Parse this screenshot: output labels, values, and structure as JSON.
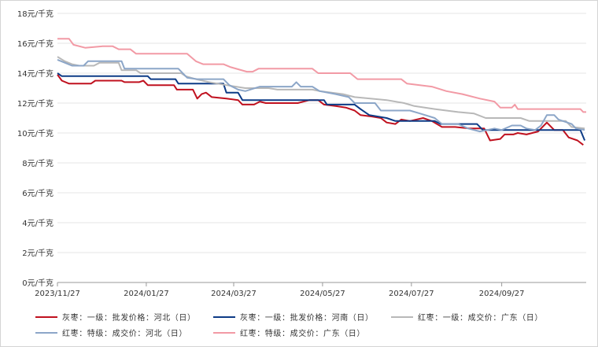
{
  "chart_data": {
    "type": "line",
    "title": "",
    "xlabel": "",
    "ylabel": "",
    "y_tick_labels": [
      "0元/千克",
      "2元/千克",
      "4元/千克",
      "6元/千克",
      "8元/千克",
      "10元/千克",
      "12元/千克",
      "14元/千克",
      "16元/千克",
      "18元/千克"
    ],
    "y_ticks": [
      0,
      2,
      4,
      6,
      8,
      10,
      12,
      14,
      16,
      18
    ],
    "ylim": [
      0,
      18
    ],
    "x_tick_labels": [
      "2023/11/27",
      "2024/01/27",
      "2024/03/27",
      "2024/05/27",
      "2024/07/27",
      "2024/09/27"
    ],
    "x_ticks": [
      "2023-11-27",
      "2024-01-27",
      "2024-03-27",
      "2024-05-27",
      "2024-07-27",
      "2024-09-27"
    ],
    "xlim": [
      "2023-11-27",
      "2024-11-24"
    ],
    "grid": "horizontal",
    "legend_position": "bottom",
    "series": [
      {
        "name": "灰枣：一级：批发价格：河北（日）",
        "color": "#c0111f",
        "points": [
          [
            "2023-11-27",
            13.9
          ],
          [
            "2023-11-30",
            13.5
          ],
          [
            "2023-12-05",
            13.3
          ],
          [
            "2023-12-20",
            13.3
          ],
          [
            "2023-12-23",
            13.5
          ],
          [
            "2024-01-10",
            13.5
          ],
          [
            "2024-01-12",
            13.4
          ],
          [
            "2024-01-22",
            13.4
          ],
          [
            "2024-01-25",
            13.5
          ],
          [
            "2024-01-28",
            13.2
          ],
          [
            "2024-02-15",
            13.2
          ],
          [
            "2024-02-17",
            12.9
          ],
          [
            "2024-02-28",
            12.9
          ],
          [
            "2024-03-02",
            12.3
          ],
          [
            "2024-03-05",
            12.6
          ],
          [
            "2024-03-08",
            12.7
          ],
          [
            "2024-03-12",
            12.4
          ],
          [
            "2024-03-22",
            12.3
          ],
          [
            "2024-03-30",
            12.2
          ],
          [
            "2024-04-02",
            11.9
          ],
          [
            "2024-04-10",
            11.9
          ],
          [
            "2024-04-14",
            12.1
          ],
          [
            "2024-04-18",
            12.0
          ],
          [
            "2024-05-10",
            12.0
          ],
          [
            "2024-05-18",
            12.2
          ],
          [
            "2024-05-24",
            12.2
          ],
          [
            "2024-05-28",
            11.9
          ],
          [
            "2024-06-05",
            11.8
          ],
          [
            "2024-06-12",
            11.7
          ],
          [
            "2024-06-18",
            11.5
          ],
          [
            "2024-06-22",
            11.2
          ],
          [
            "2024-06-30",
            11.1
          ],
          [
            "2024-07-06",
            11.0
          ],
          [
            "2024-07-10",
            10.7
          ],
          [
            "2024-07-16",
            10.6
          ],
          [
            "2024-07-20",
            10.9
          ],
          [
            "2024-07-26",
            10.8
          ],
          [
            "2024-08-04",
            11.0
          ],
          [
            "2024-08-10",
            10.8
          ],
          [
            "2024-08-17",
            10.4
          ],
          [
            "2024-08-26",
            10.4
          ],
          [
            "2024-09-05",
            10.3
          ],
          [
            "2024-09-15",
            10.3
          ],
          [
            "2024-09-19",
            9.5
          ],
          [
            "2024-09-26",
            9.6
          ],
          [
            "2024-09-29",
            9.9
          ],
          [
            "2024-10-05",
            9.9
          ],
          [
            "2024-10-08",
            10.0
          ],
          [
            "2024-10-14",
            9.9
          ],
          [
            "2024-10-22",
            10.1
          ],
          [
            "2024-10-28",
            10.7
          ],
          [
            "2024-11-02",
            10.2
          ],
          [
            "2024-11-08",
            10.2
          ],
          [
            "2024-11-12",
            9.7
          ],
          [
            "2024-11-18",
            9.5
          ],
          [
            "2024-11-22",
            9.2
          ]
        ]
      },
      {
        "name": "灰枣：一级：批发价格：河南（日）",
        "color": "#0d3b86",
        "points": [
          [
            "2023-11-27",
            14.0
          ],
          [
            "2023-11-30",
            13.8
          ],
          [
            "2024-01-28",
            13.8
          ],
          [
            "2024-01-30",
            13.6
          ],
          [
            "2024-02-16",
            13.6
          ],
          [
            "2024-02-18",
            13.3
          ],
          [
            "2024-03-20",
            13.3
          ],
          [
            "2024-03-22",
            12.7
          ],
          [
            "2024-03-30",
            12.7
          ],
          [
            "2024-04-02",
            12.2
          ],
          [
            "2024-05-28",
            12.2
          ],
          [
            "2024-05-30",
            11.9
          ],
          [
            "2024-06-18",
            11.9
          ],
          [
            "2024-06-22",
            11.6
          ],
          [
            "2024-06-28",
            11.2
          ],
          [
            "2024-07-10",
            11.0
          ],
          [
            "2024-07-16",
            10.8
          ],
          [
            "2024-08-12",
            10.8
          ],
          [
            "2024-08-16",
            10.6
          ],
          [
            "2024-09-10",
            10.6
          ],
          [
            "2024-09-14",
            10.2
          ],
          [
            "2024-11-20",
            10.2
          ],
          [
            "2024-11-23",
            9.5
          ]
        ]
      },
      {
        "name": "红枣：一级：成交价：广东（日）",
        "color": "#b8b8b8",
        "points": [
          [
            "2023-11-27",
            15.1
          ],
          [
            "2023-12-02",
            14.8
          ],
          [
            "2023-12-07",
            14.6
          ],
          [
            "2023-12-12",
            14.5
          ],
          [
            "2023-12-22",
            14.5
          ],
          [
            "2023-12-26",
            14.7
          ],
          [
            "2024-01-08",
            14.7
          ],
          [
            "2024-01-10",
            14.2
          ],
          [
            "2024-01-20",
            14.2
          ],
          [
            "2024-01-23",
            14.0
          ],
          [
            "2024-02-20",
            14.0
          ],
          [
            "2024-02-23",
            13.8
          ],
          [
            "2024-03-01",
            13.6
          ],
          [
            "2024-03-10",
            13.4
          ],
          [
            "2024-03-22",
            13.2
          ],
          [
            "2024-04-04",
            13.0
          ],
          [
            "2024-04-20",
            13.0
          ],
          [
            "2024-04-26",
            12.9
          ],
          [
            "2024-05-20",
            12.9
          ],
          [
            "2024-05-25",
            12.8
          ],
          [
            "2024-06-10",
            12.6
          ],
          [
            "2024-06-18",
            12.4
          ],
          [
            "2024-07-10",
            12.2
          ],
          [
            "2024-07-22",
            12.0
          ],
          [
            "2024-07-29",
            11.8
          ],
          [
            "2024-08-12",
            11.6
          ],
          [
            "2024-08-28",
            11.4
          ],
          [
            "2024-09-08",
            11.3
          ],
          [
            "2024-09-16",
            11.0
          ],
          [
            "2024-10-10",
            11.0
          ],
          [
            "2024-10-16",
            10.8
          ],
          [
            "2024-11-10",
            10.8
          ],
          [
            "2024-11-14",
            10.4
          ],
          [
            "2024-11-23",
            10.3
          ]
        ]
      },
      {
        "name": "红枣：特级：成交价：河北（日）",
        "color": "#8ca6c8",
        "points": [
          [
            "2023-11-27",
            14.9
          ],
          [
            "2023-12-02",
            14.7
          ],
          [
            "2023-12-07",
            14.5
          ],
          [
            "2023-12-15",
            14.5
          ],
          [
            "2023-12-18",
            14.8
          ],
          [
            "2024-01-10",
            14.8
          ],
          [
            "2024-01-12",
            14.3
          ],
          [
            "2024-02-18",
            14.3
          ],
          [
            "2024-02-24",
            13.7
          ],
          [
            "2024-03-02",
            13.6
          ],
          [
            "2024-03-20",
            13.6
          ],
          [
            "2024-03-24",
            13.2
          ],
          [
            "2024-03-30",
            12.9
          ],
          [
            "2024-04-04",
            12.8
          ],
          [
            "2024-04-14",
            13.1
          ],
          [
            "2024-05-06",
            13.1
          ],
          [
            "2024-05-09",
            13.4
          ],
          [
            "2024-05-12",
            13.1
          ],
          [
            "2024-05-20",
            13.1
          ],
          [
            "2024-05-25",
            12.8
          ],
          [
            "2024-06-05",
            12.6
          ],
          [
            "2024-06-14",
            12.4
          ],
          [
            "2024-06-18",
            12.0
          ],
          [
            "2024-07-02",
            12.0
          ],
          [
            "2024-07-06",
            11.5
          ],
          [
            "2024-07-26",
            11.5
          ],
          [
            "2024-08-02",
            11.3
          ],
          [
            "2024-08-12",
            11.0
          ],
          [
            "2024-08-17",
            10.6
          ],
          [
            "2024-08-28",
            10.6
          ],
          [
            "2024-09-04",
            10.3
          ],
          [
            "2024-09-12",
            10.1
          ],
          [
            "2024-09-22",
            10.3
          ],
          [
            "2024-09-27",
            10.2
          ],
          [
            "2024-10-04",
            10.5
          ],
          [
            "2024-10-10",
            10.5
          ],
          [
            "2024-10-14",
            10.3
          ],
          [
            "2024-10-20",
            10.2
          ],
          [
            "2024-10-24",
            10.5
          ],
          [
            "2024-10-28",
            11.2
          ],
          [
            "2024-11-02",
            11.2
          ],
          [
            "2024-11-05",
            10.9
          ],
          [
            "2024-11-14",
            10.6
          ],
          [
            "2024-11-17",
            10.3
          ],
          [
            "2024-11-23",
            10.2
          ]
        ]
      },
      {
        "name": "红枣：特级：成交价：广东（日）",
        "color": "#f29aa5",
        "points": [
          [
            "2023-11-27",
            16.3
          ],
          [
            "2023-12-05",
            16.3
          ],
          [
            "2023-12-08",
            15.9
          ],
          [
            "2023-12-16",
            15.7
          ],
          [
            "2023-12-28",
            15.8
          ],
          [
            "2024-01-04",
            15.8
          ],
          [
            "2024-01-08",
            15.6
          ],
          [
            "2024-01-16",
            15.6
          ],
          [
            "2024-01-20",
            15.3
          ],
          [
            "2024-02-24",
            15.3
          ],
          [
            "2024-03-01",
            14.8
          ],
          [
            "2024-03-06",
            14.6
          ],
          [
            "2024-03-20",
            14.6
          ],
          [
            "2024-03-25",
            14.4
          ],
          [
            "2024-04-05",
            14.1
          ],
          [
            "2024-04-09",
            14.1
          ],
          [
            "2024-04-13",
            14.3
          ],
          [
            "2024-05-20",
            14.3
          ],
          [
            "2024-05-24",
            14.0
          ],
          [
            "2024-06-15",
            14.0
          ],
          [
            "2024-06-20",
            13.6
          ],
          [
            "2024-07-20",
            13.6
          ],
          [
            "2024-07-24",
            13.3
          ],
          [
            "2024-08-10",
            13.1
          ],
          [
            "2024-08-20",
            12.8
          ],
          [
            "2024-08-31",
            12.6
          ],
          [
            "2024-09-12",
            12.3
          ],
          [
            "2024-09-22",
            12.1
          ],
          [
            "2024-09-26",
            11.7
          ],
          [
            "2024-10-04",
            11.7
          ],
          [
            "2024-10-06",
            11.9
          ],
          [
            "2024-10-08",
            11.6
          ],
          [
            "2024-11-20",
            11.6
          ],
          [
            "2024-11-22",
            11.4
          ],
          [
            "2024-11-24",
            11.4
          ]
        ]
      }
    ]
  }
}
